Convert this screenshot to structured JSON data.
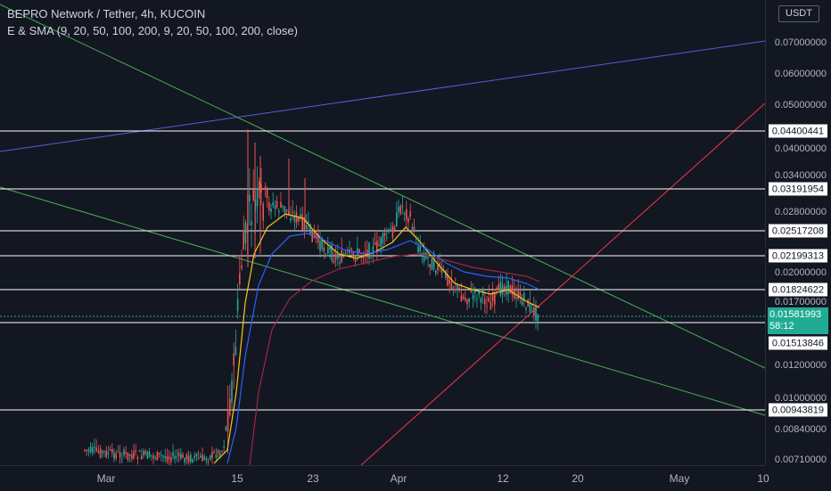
{
  "header": {
    "symbol_title": "BEPRO Network / Tether, 4h, KUCOIN",
    "indicator_label": "E & SMA (9, 20, 50, 100, 200, 9, 20, 50, 100, 200, close)"
  },
  "price_axis": {
    "currency": "USDT",
    "ticks": [
      "0.07000000",
      "0.06000000",
      "0.05000000",
      "0.04000000",
      "0.03400000",
      "0.02800000",
      "0.02000000",
      "0.01700000",
      "0.01200000",
      "0.01000000",
      "0.00840000",
      "0.00710000"
    ],
    "level_labels": [
      "0.04400441",
      "0.03191954",
      "0.02517208",
      "0.02199313",
      "0.01824622",
      "0.01513846",
      "0.00943819"
    ],
    "current_price": "0.01581993",
    "countdown": "58:12"
  },
  "time_axis": {
    "ticks": [
      "Mar",
      "15",
      "23",
      "Apr",
      "12",
      "20",
      "May",
      "10"
    ]
  },
  "colors": {
    "background": "#131722",
    "up_candle": "#26a69a",
    "down_candle": "#ef5350",
    "level_line": "#ffffff",
    "trend_green": "#4caf50",
    "trend_red": "#f23645",
    "trend_purple": "#5b5bd6",
    "ma_yellow": "#f5c518",
    "ma_blue": "#2962ff",
    "ma_maroon": "#9c2740",
    "current_price": "#22ab94"
  }
}
